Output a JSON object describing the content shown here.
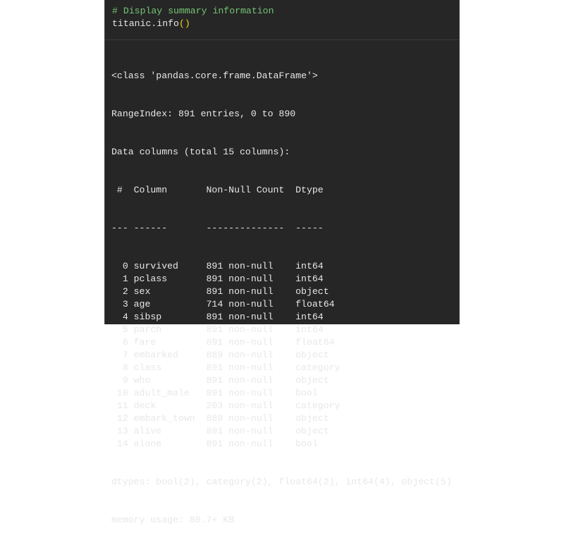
{
  "code": {
    "comment": "# Display summary information",
    "call_name": "titanic.info",
    "call_parens": "()"
  },
  "output": {
    "class_line": "<class 'pandas.core.frame.DataFrame'>",
    "range_index": "RangeIndex: 891 entries, 0 to 890",
    "data_columns": "Data columns (total 15 columns):",
    "header": {
      "index": "#",
      "column": "Column",
      "count": "Non-Null Count",
      "dtype": "Dtype"
    },
    "divider": {
      "index": "---",
      "column": "------",
      "count": "--------------",
      "dtype": "-----"
    },
    "rows": [
      {
        "index": "0",
        "column": "survived",
        "count": "891 non-null",
        "dtype": "int64"
      },
      {
        "index": "1",
        "column": "pclass",
        "count": "891 non-null",
        "dtype": "int64"
      },
      {
        "index": "2",
        "column": "sex",
        "count": "891 non-null",
        "dtype": "object"
      },
      {
        "index": "3",
        "column": "age",
        "count": "714 non-null",
        "dtype": "float64"
      },
      {
        "index": "4",
        "column": "sibsp",
        "count": "891 non-null",
        "dtype": "int64"
      },
      {
        "index": "5",
        "column": "parch",
        "count": "891 non-null",
        "dtype": "int64"
      },
      {
        "index": "6",
        "column": "fare",
        "count": "891 non-null",
        "dtype": "float64"
      },
      {
        "index": "7",
        "column": "embarked",
        "count": "889 non-null",
        "dtype": "object"
      },
      {
        "index": "8",
        "column": "class",
        "count": "891 non-null",
        "dtype": "category"
      },
      {
        "index": "9",
        "column": "who",
        "count": "891 non-null",
        "dtype": "object"
      },
      {
        "index": "10",
        "column": "adult_male",
        "count": "891 non-null",
        "dtype": "bool"
      },
      {
        "index": "11",
        "column": "deck",
        "count": "203 non-null",
        "dtype": "category"
      },
      {
        "index": "12",
        "column": "embark_town",
        "count": "889 non-null",
        "dtype": "object"
      },
      {
        "index": "13",
        "column": "alive",
        "count": "891 non-null",
        "dtype": "object"
      },
      {
        "index": "14",
        "column": "alone",
        "count": "891 non-null",
        "dtype": "bool"
      }
    ],
    "dtypes": "dtypes: bool(2), category(2), float64(2), int64(4), object(5)",
    "memory": "memory usage: 80.7+ KB"
  },
  "colors": {
    "background": "#262626",
    "comment": "#74c474",
    "paren": "#f2d21b",
    "text": "#e8e8e8"
  }
}
